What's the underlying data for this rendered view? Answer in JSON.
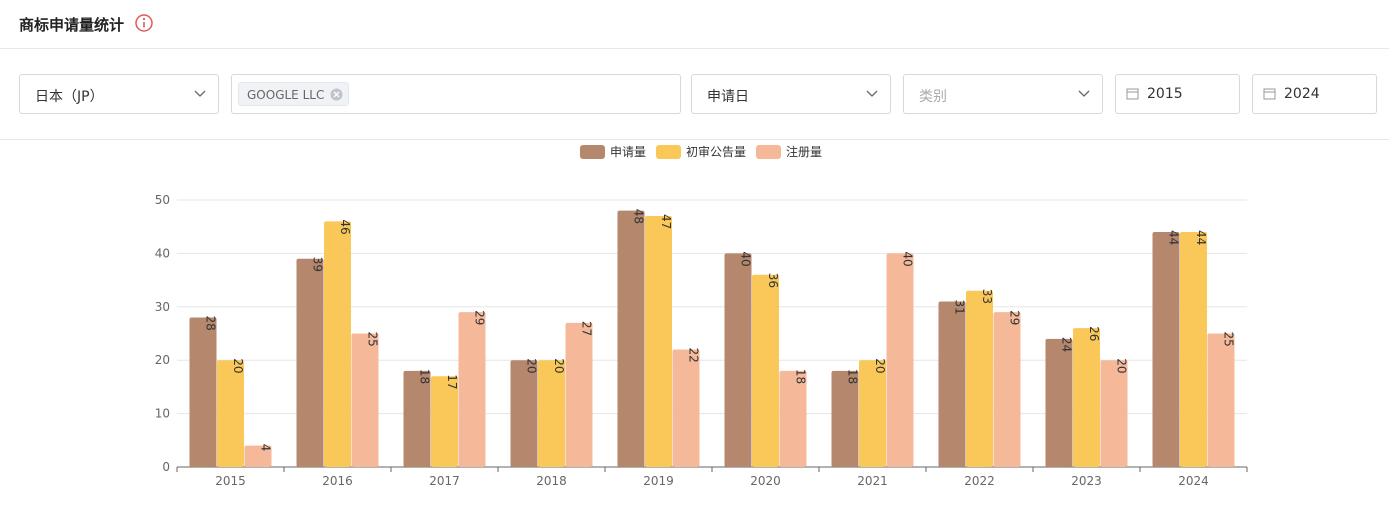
{
  "header": {
    "title": "商标申请量统计"
  },
  "filters": {
    "country": "日本（JP）",
    "applicant_tag": "GOOGLE LLC",
    "date_type": "申请日",
    "category_placeholder": "类别",
    "start_year": "2015",
    "end_year": "2024"
  },
  "chart_data": {
    "type": "bar",
    "categories": [
      "2015",
      "2016",
      "2017",
      "2018",
      "2019",
      "2020",
      "2021",
      "2022",
      "2023",
      "2024"
    ],
    "series": [
      {
        "name": "申请量",
        "color": "#b5876d",
        "values": [
          28,
          39,
          18,
          20,
          48,
          40,
          18,
          31,
          24,
          44
        ]
      },
      {
        "name": "初审公告量",
        "color": "#f9c858",
        "values": [
          20,
          46,
          17,
          20,
          47,
          36,
          20,
          33,
          26,
          44
        ]
      },
      {
        "name": "注册量",
        "color": "#f5b99a",
        "values": [
          4,
          25,
          29,
          27,
          22,
          18,
          40,
          29,
          20,
          25
        ]
      }
    ],
    "ylim": [
      0,
      50
    ],
    "yticks": [
      0,
      10,
      20,
      30,
      40,
      50
    ],
    "grid": true,
    "legend": "top"
  }
}
